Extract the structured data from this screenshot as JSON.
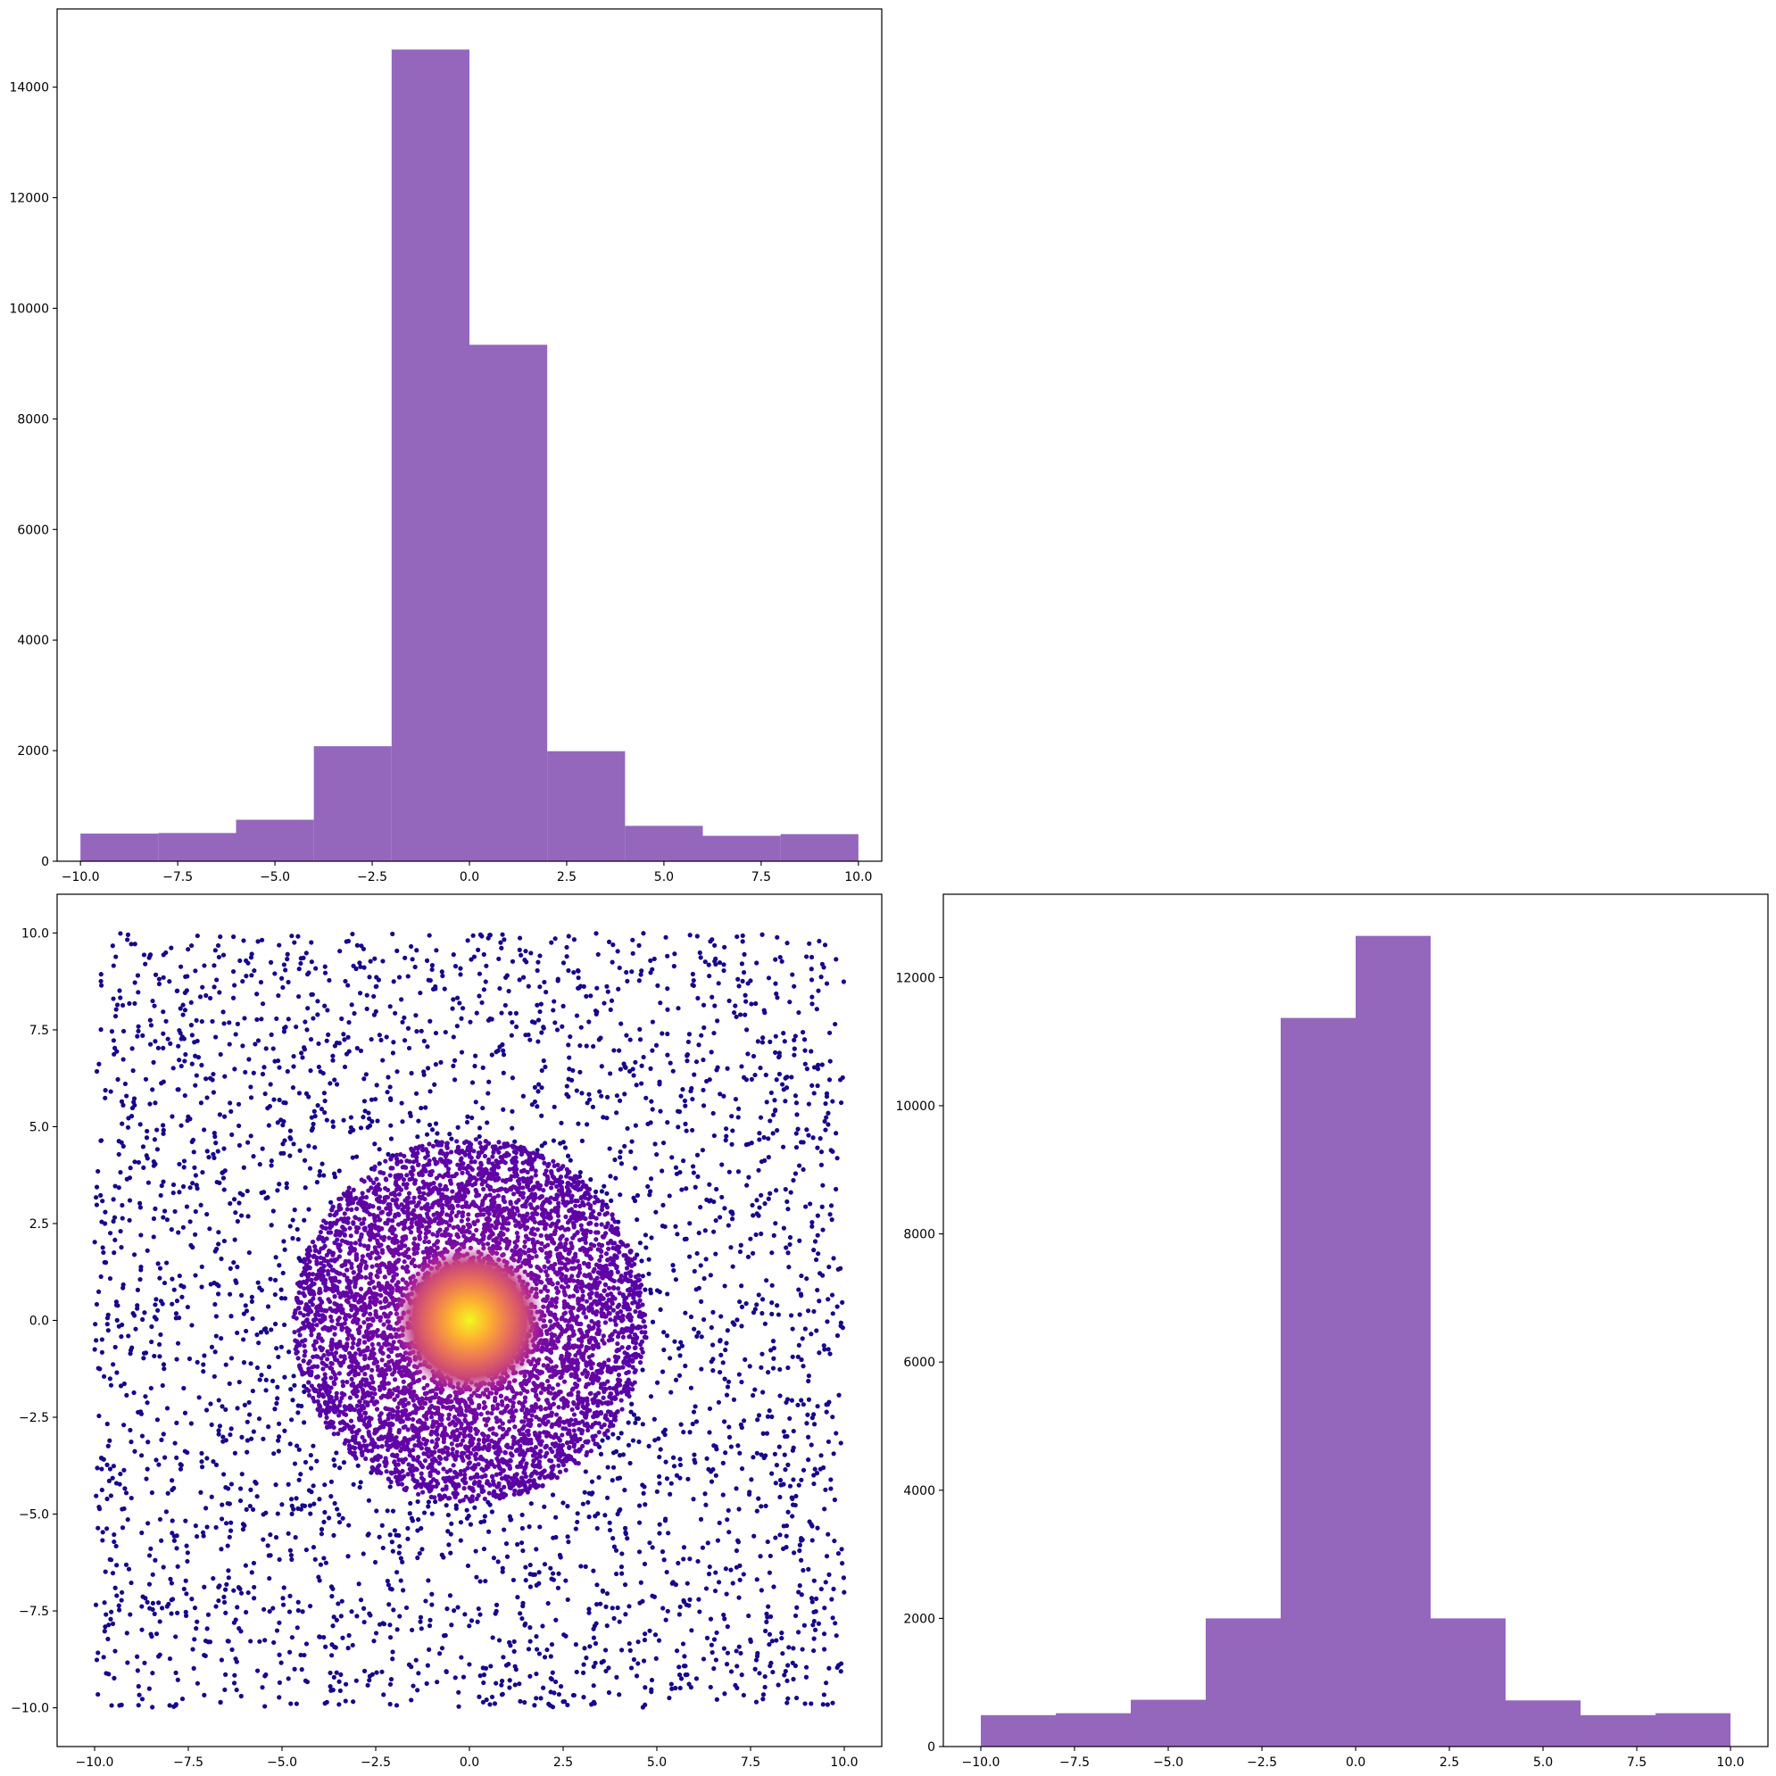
{
  "figure": {
    "background": "#ffffff",
    "bar_color": "#9467bd",
    "scatter_colormap": [
      "#0d0887",
      "#5c01a6",
      "#9c179e",
      "#cc4778",
      "#ed7953",
      "#fdb42f",
      "#f0f921"
    ]
  },
  "chart_data": [
    {
      "id": "top-left-histogram",
      "type": "bar",
      "bin_edges": [
        -10,
        -8,
        -6,
        -4,
        -2,
        0,
        2,
        4,
        6,
        8,
        10
      ],
      "values": [
        500,
        510,
        750,
        2080,
        14680,
        9340,
        1990,
        640,
        460,
        490
      ],
      "xlim": [
        -10.6,
        10.6
      ],
      "ylim": [
        0,
        15414
      ],
      "xticks": [
        -10.0,
        -7.5,
        -5.0,
        -2.5,
        0.0,
        2.5,
        5.0,
        7.5,
        10.0
      ],
      "xtick_labels": [
        "−10.0",
        "−7.5",
        "−5.0",
        "−2.5",
        "0.0",
        "2.5",
        "5.0",
        "7.5",
        "10.0"
      ],
      "yticks": [
        0,
        2000,
        4000,
        6000,
        8000,
        10000,
        12000,
        14000
      ],
      "ytick_labels": [
        "0",
        "2000",
        "4000",
        "6000",
        "8000",
        "10000",
        "12000",
        "14000"
      ],
      "grid": false
    },
    {
      "id": "bottom-left-scatter",
      "type": "scatter",
      "description_of_distribution": {
        "uniform_background": {
          "x_range": [
            -10,
            10
          ],
          "y_range": [
            -10,
            10
          ],
          "approx_count": 3500
        },
        "dense_disk": {
          "center": [
            0,
            0
          ],
          "radius": 4.7,
          "approx_count": 6000
        },
        "color_by": "density, high at center"
      },
      "xlim": [
        -11,
        11
      ],
      "ylim": [
        -11,
        11
      ],
      "xticks": [
        -10.0,
        -7.5,
        -5.0,
        -2.5,
        0.0,
        2.5,
        5.0,
        7.5,
        10.0
      ],
      "xtick_labels": [
        "−10.0",
        "−7.5",
        "−5.0",
        "−2.5",
        "0.0",
        "2.5",
        "5.0",
        "7.5",
        "10.0"
      ],
      "yticks": [
        10.0,
        7.5,
        5.0,
        2.5,
        0.0,
        -2.5,
        -5.0,
        -7.5,
        -10.0
      ],
      "ytick_labels": [
        "10.0",
        "7.5",
        "5.0",
        "2.5",
        "0.0",
        "−2.5",
        "−5.0",
        "−7.5",
        "−10.0"
      ],
      "grid": false
    },
    {
      "id": "bottom-right-histogram",
      "type": "bar",
      "bin_edges": [
        -10,
        -8,
        -6,
        -4,
        -2,
        0,
        2,
        4,
        6,
        8,
        10
      ],
      "values": [
        490,
        520,
        730,
        2000,
        11370,
        12650,
        2000,
        720,
        490,
        520
      ],
      "xlim": [
        -11,
        11
      ],
      "ylim": [
        0,
        13300
      ],
      "xticks": [
        -10.0,
        -7.5,
        -5.0,
        -2.5,
        0.0,
        2.5,
        5.0,
        7.5,
        10.0
      ],
      "xtick_labels": [
        "−10.0",
        "−7.5",
        "−5.0",
        "−2.5",
        "0.0",
        "2.5",
        "5.0",
        "7.5",
        "10.0"
      ],
      "yticks": [
        0,
        2000,
        4000,
        6000,
        8000,
        10000,
        12000
      ],
      "ytick_labels": [
        "0",
        "2000",
        "4000",
        "6000",
        "8000",
        "10000",
        "12000"
      ],
      "grid": false
    }
  ]
}
